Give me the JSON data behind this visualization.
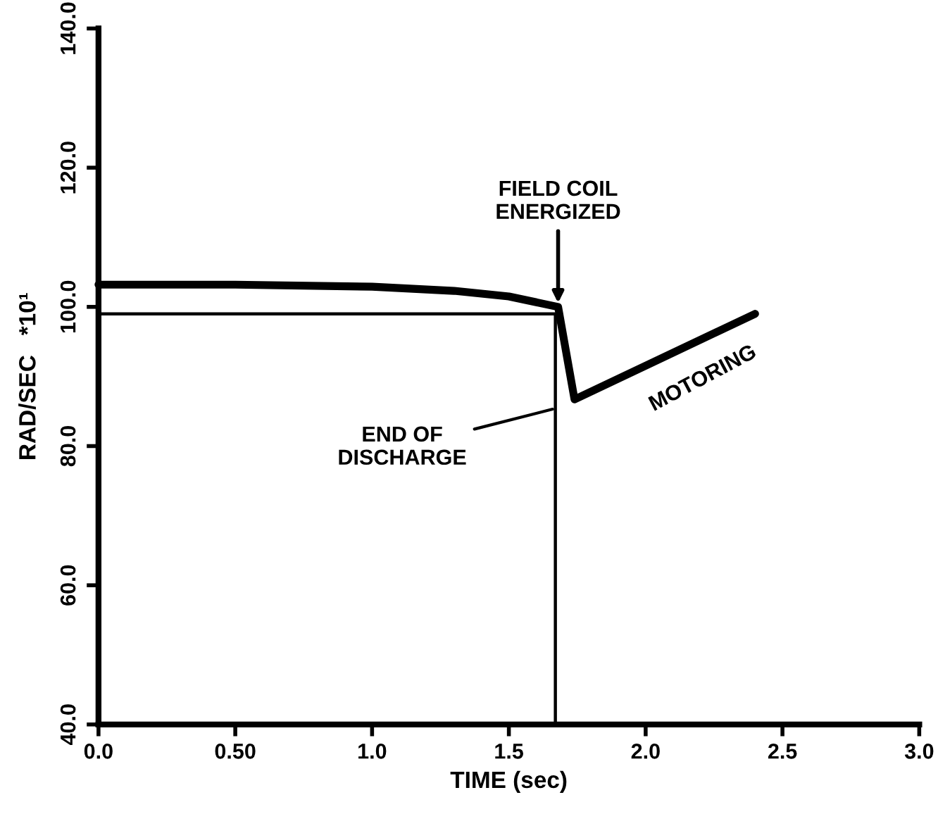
{
  "chart_data": {
    "type": "line",
    "xlabel": "TIME (sec)",
    "ylabel": "RAD/SEC   *10¹",
    "xlim": [
      0,
      3.0
    ],
    "ylim": [
      40,
      140
    ],
    "xticks": [
      {
        "value": 0,
        "label": "0.0"
      },
      {
        "value": 0.5,
        "label": "0.50"
      },
      {
        "value": 1.0,
        "label": "1.0"
      },
      {
        "value": 1.5,
        "label": "1.5"
      },
      {
        "value": 2.0,
        "label": "2.0"
      },
      {
        "value": 2.5,
        "label": "2.5"
      },
      {
        "value": 3.0,
        "label": "3.0"
      }
    ],
    "yticks": [
      {
        "value": 40,
        "label": "40.0"
      },
      {
        "value": 60,
        "label": "60.0"
      },
      {
        "value": 80,
        "label": "80.0"
      },
      {
        "value": 100,
        "label": "100.0"
      },
      {
        "value": 120,
        "label": "120.0"
      },
      {
        "value": 140,
        "label": "140.0"
      }
    ],
    "series": [
      {
        "color": "#000000",
        "x": [
          0,
          0.5,
          1.0,
          1.3,
          1.5,
          1.68,
          1.74,
          2.4
        ],
        "values": [
          103.2,
          103.2,
          102.9,
          102.3,
          101.5,
          100.0,
          86.7,
          99.0
        ]
      },
      {
        "color": "#000000",
        "x": [
          0,
          1.67,
          1.67
        ],
        "values": [
          99.0,
          99.0,
          40
        ]
      }
    ],
    "annotations": [
      {
        "text": "FIELD COIL\nENERGIZED",
        "x": 1.68,
        "y": 100.0
      },
      {
        "text": "END OF\nDISCHARGE",
        "x": 1.66,
        "y": 85.3
      },
      {
        "text": "MOTORING",
        "x": 2.15,
        "y": 94.3
      }
    ],
    "grid": false,
    "legend": false,
    "marker": "none",
    "line_style": "solid"
  }
}
